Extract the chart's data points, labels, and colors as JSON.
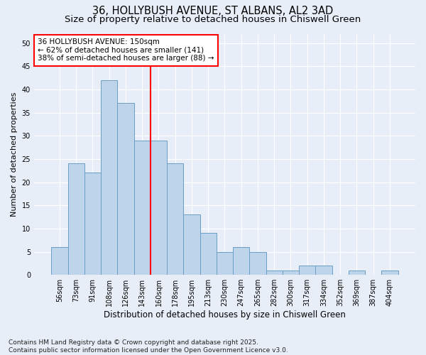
{
  "title1": "36, HOLLYBUSH AVENUE, ST ALBANS, AL2 3AD",
  "title2": "Size of property relative to detached houses in Chiswell Green",
  "xlabel": "Distribution of detached houses by size in Chiswell Green",
  "ylabel": "Number of detached properties",
  "categories": [
    "56sqm",
    "73sqm",
    "91sqm",
    "108sqm",
    "126sqm",
    "143sqm",
    "160sqm",
    "178sqm",
    "195sqm",
    "213sqm",
    "230sqm",
    "247sqm",
    "265sqm",
    "282sqm",
    "300sqm",
    "317sqm",
    "334sqm",
    "352sqm",
    "369sqm",
    "387sqm",
    "404sqm"
  ],
  "values": [
    6,
    24,
    22,
    42,
    37,
    29,
    29,
    24,
    13,
    9,
    5,
    6,
    5,
    1,
    1,
    2,
    2,
    0,
    1,
    0,
    1
  ],
  "bar_color": "#bdd4eb",
  "bar_edge_color": "#6a9ec5",
  "vline_color": "red",
  "vline_x_index": 5.5,
  "annotation_text": "36 HOLLYBUSH AVENUE: 150sqm\n← 62% of detached houses are smaller (141)\n38% of semi-detached houses are larger (88) →",
  "ylim": [
    0,
    52
  ],
  "yticks": [
    0,
    5,
    10,
    15,
    20,
    25,
    30,
    35,
    40,
    45,
    50
  ],
  "background_color": "#e8eef8",
  "grid_color": "#ffffff",
  "footer_text": "Contains HM Land Registry data © Crown copyright and database right 2025.\nContains public sector information licensed under the Open Government Licence v3.0.",
  "title1_fontsize": 10.5,
  "title2_fontsize": 9.5,
  "xlabel_fontsize": 8.5,
  "ylabel_fontsize": 8,
  "tick_fontsize": 7,
  "annotation_fontsize": 7.5,
  "footer_fontsize": 6.5
}
